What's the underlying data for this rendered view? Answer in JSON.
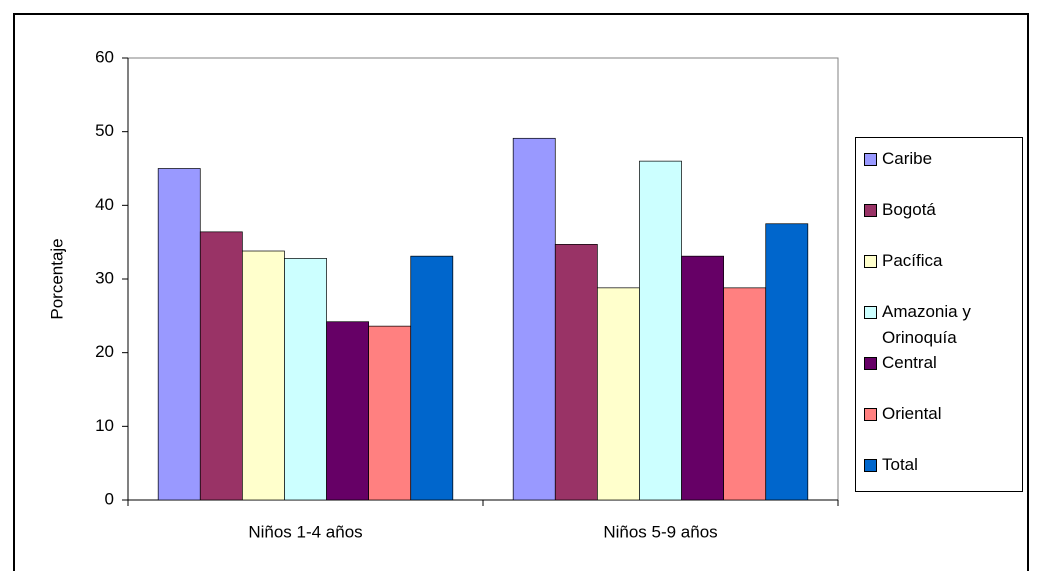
{
  "chart_data": {
    "type": "bar",
    "y_label": "Porcentaje",
    "categories": [
      "Niños 1-4 años",
      "Niños 5-9 años"
    ],
    "series": [
      {
        "name": "Caribe",
        "color": "#9999ff",
        "values": [
          45,
          49.1
        ]
      },
      {
        "name": "Bogotá",
        "color": "#993366",
        "values": [
          36.4,
          34.7
        ]
      },
      {
        "name": "Pacífica",
        "color": "#ffffcc",
        "values": [
          33.8,
          28.8
        ]
      },
      {
        "name": "Amazonia y Orinoquía",
        "color": "#ccffff",
        "values": [
          32.8,
          46
        ]
      },
      {
        "name": "Central",
        "color": "#660066",
        "values": [
          24.2,
          33.1
        ]
      },
      {
        "name": "Oriental",
        "color": "#ff8080",
        "values": [
          23.6,
          28.8
        ]
      },
      {
        "name": "Total",
        "color": "#0066cc",
        "values": [
          33.1,
          37.5
        ]
      }
    ],
    "ylim": [
      0,
      60
    ],
    "yticks": [
      0,
      10,
      20,
      30,
      40,
      50,
      60
    ],
    "grid": false,
    "legend": "right"
  }
}
